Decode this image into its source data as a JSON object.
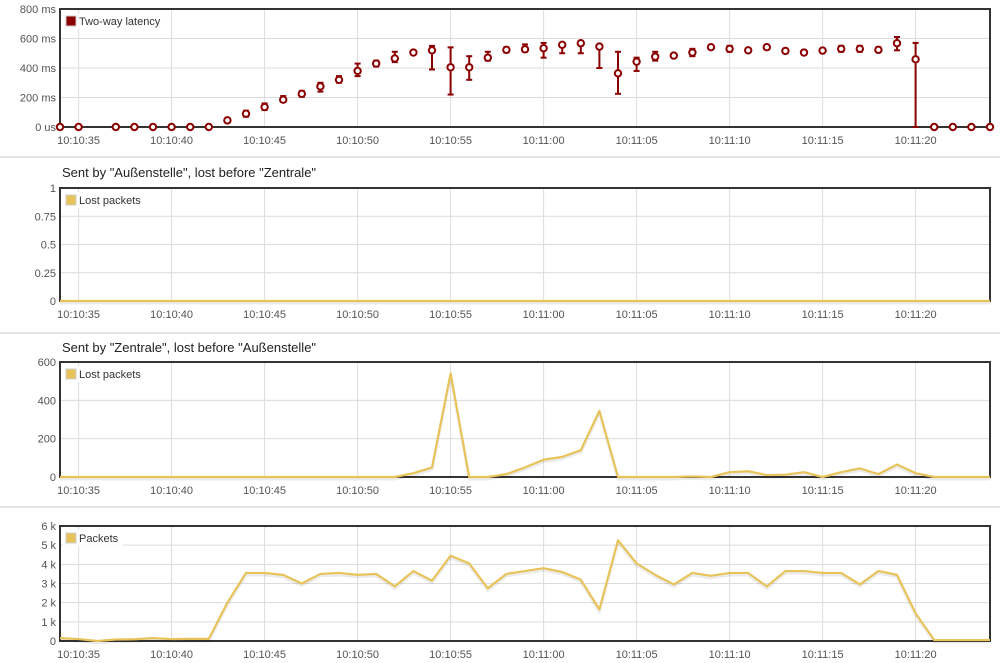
{
  "colors": {
    "latency": "#8b0000",
    "lost": "#e8c35a",
    "packets": "#e8c35a",
    "grid": "#dcdcdc",
    "frame": "#333333"
  },
  "x_ticks": [
    "10:10:35",
    "10:10:40",
    "10:10:45",
    "10:10:50",
    "10:10:55",
    "10:11:00",
    "10:11:05",
    "10:11:10",
    "10:11:15",
    "10:11:20"
  ],
  "chart_data": [
    {
      "type": "scatter",
      "title": "",
      "legend": "Two-way latency",
      "legend_position": "top-left",
      "x_unit": "seconds after 10:10:00",
      "xlim": [
        34,
        84
      ],
      "ylim": [
        0,
        800
      ],
      "y_tick_labels": [
        "0 us",
        "200 ms",
        "400 ms",
        "600 ms",
        "800 ms"
      ],
      "y_tick_values": [
        0,
        200,
        400,
        600,
        800
      ],
      "x": [
        34,
        35,
        37,
        38,
        39,
        40,
        41,
        42,
        43,
        44,
        45,
        46,
        47,
        48,
        49,
        50,
        51,
        52,
        53,
        54,
        55,
        56,
        57,
        58,
        59,
        60,
        61,
        62,
        63,
        64,
        65,
        66,
        67,
        68,
        69,
        70,
        71,
        72,
        73,
        74,
        75,
        76,
        77,
        78,
        79,
        80,
        81,
        82,
        83,
        84
      ],
      "values": [
        0,
        0,
        0,
        0,
        0,
        0,
        0,
        0,
        45,
        90,
        135,
        185,
        225,
        275,
        320,
        380,
        430,
        465,
        505,
        520,
        405,
        405,
        470,
        523,
        527,
        534,
        557,
        568,
        545,
        364,
        443,
        477,
        484,
        505,
        541,
        530,
        520,
        541,
        516,
        505,
        518,
        530,
        530,
        523,
        568,
        459,
        0,
        0,
        0,
        0
      ],
      "err_low": [
        0,
        0,
        0,
        0,
        0,
        0,
        0,
        0,
        30,
        70,
        115,
        170,
        205,
        240,
        300,
        345,
        410,
        440,
        500,
        390,
        220,
        320,
        450,
        505,
        510,
        470,
        500,
        500,
        400,
        225,
        380,
        450,
        475,
        480,
        535,
        510,
        510,
        525,
        500,
        490,
        505,
        510,
        510,
        510,
        520,
        0,
        0,
        0,
        0,
        0
      ],
      "err_high": [
        0,
        0,
        0,
        0,
        0,
        0,
        0,
        0,
        60,
        110,
        160,
        210,
        245,
        300,
        345,
        430,
        450,
        510,
        510,
        550,
        540,
        480,
        510,
        540,
        560,
        570,
        570,
        575,
        560,
        510,
        470,
        510,
        490,
        530,
        545,
        550,
        530,
        555,
        530,
        520,
        530,
        550,
        550,
        540,
        610,
        570,
        0,
        0,
        0,
        0
      ]
    },
    {
      "type": "line",
      "title": "Sent by \"Außenstelle\", lost before \"Zentrale\"",
      "legend": "Lost packets",
      "legend_position": "top-left",
      "x_unit": "seconds after 10:10:00",
      "xlim": [
        34,
        84
      ],
      "ylim": [
        0,
        1
      ],
      "y_tick_labels": [
        "0",
        "0.25",
        "0.5",
        "0.75",
        "1"
      ],
      "y_tick_values": [
        0,
        0.25,
        0.5,
        0.75,
        1
      ],
      "x": [
        34,
        84
      ],
      "values": [
        0,
        0
      ]
    },
    {
      "type": "line",
      "title": "Sent by \"Zentrale\", lost before \"Außenstelle\"",
      "legend": "Lost packets",
      "legend_position": "top-left",
      "x_unit": "seconds after 10:10:00",
      "xlim": [
        34,
        84
      ],
      "ylim": [
        0,
        600
      ],
      "y_tick_labels": [
        "0",
        "200",
        "400",
        "600"
      ],
      "y_tick_values": [
        0,
        200,
        400,
        600
      ],
      "x": [
        34,
        35,
        36,
        37,
        38,
        39,
        40,
        41,
        42,
        43,
        44,
        45,
        46,
        47,
        48,
        49,
        50,
        51,
        52,
        53,
        54,
        55,
        56,
        57,
        58,
        59,
        60,
        61,
        62,
        63,
        64,
        65,
        66,
        67,
        68,
        69,
        70,
        71,
        72,
        73,
        74,
        75,
        76,
        77,
        78,
        79,
        80,
        81,
        82,
        83,
        84
      ],
      "values": [
        0,
        0,
        0,
        0,
        0,
        0,
        0,
        0,
        0,
        0,
        0,
        0,
        0,
        0,
        0,
        0,
        0,
        0,
        0,
        20,
        50,
        540,
        0,
        0,
        15,
        50,
        90,
        105,
        140,
        345,
        0,
        0,
        0,
        0,
        3,
        0,
        25,
        30,
        10,
        12,
        25,
        0,
        25,
        45,
        15,
        65,
        20,
        0,
        0,
        0,
        0
      ]
    },
    {
      "type": "line",
      "title": "",
      "legend": "Packets",
      "legend_position": "top-left",
      "x_unit": "seconds after 10:10:00",
      "xlim": [
        34,
        84
      ],
      "ylim": [
        0,
        6000
      ],
      "y_tick_labels": [
        "0",
        "1 k",
        "2 k",
        "3 k",
        "4 k",
        "5 k",
        "6 k"
      ],
      "y_tick_values": [
        0,
        1000,
        2000,
        3000,
        4000,
        5000,
        6000
      ],
      "x": [
        34,
        35,
        36,
        37,
        38,
        39,
        40,
        41,
        42,
        43,
        44,
        45,
        46,
        47,
        48,
        49,
        50,
        51,
        52,
        53,
        54,
        55,
        56,
        57,
        58,
        59,
        60,
        61,
        62,
        63,
        64,
        65,
        66,
        67,
        68,
        69,
        70,
        71,
        72,
        73,
        74,
        75,
        76,
        77,
        78,
        79,
        80,
        81,
        82,
        83,
        84
      ],
      "values": [
        150,
        100,
        0,
        80,
        90,
        150,
        100,
        110,
        110,
        2000,
        3550,
        3550,
        3450,
        3000,
        3500,
        3550,
        3450,
        3500,
        2850,
        3650,
        3150,
        4450,
        4050,
        2750,
        3500,
        3650,
        3800,
        3600,
        3200,
        1650,
        5250,
        4050,
        3450,
        2950,
        3550,
        3400,
        3550,
        3550,
        2850,
        3650,
        3650,
        3550,
        3550,
        2950,
        3650,
        3450,
        1450,
        50,
        50,
        50,
        50
      ]
    }
  ]
}
